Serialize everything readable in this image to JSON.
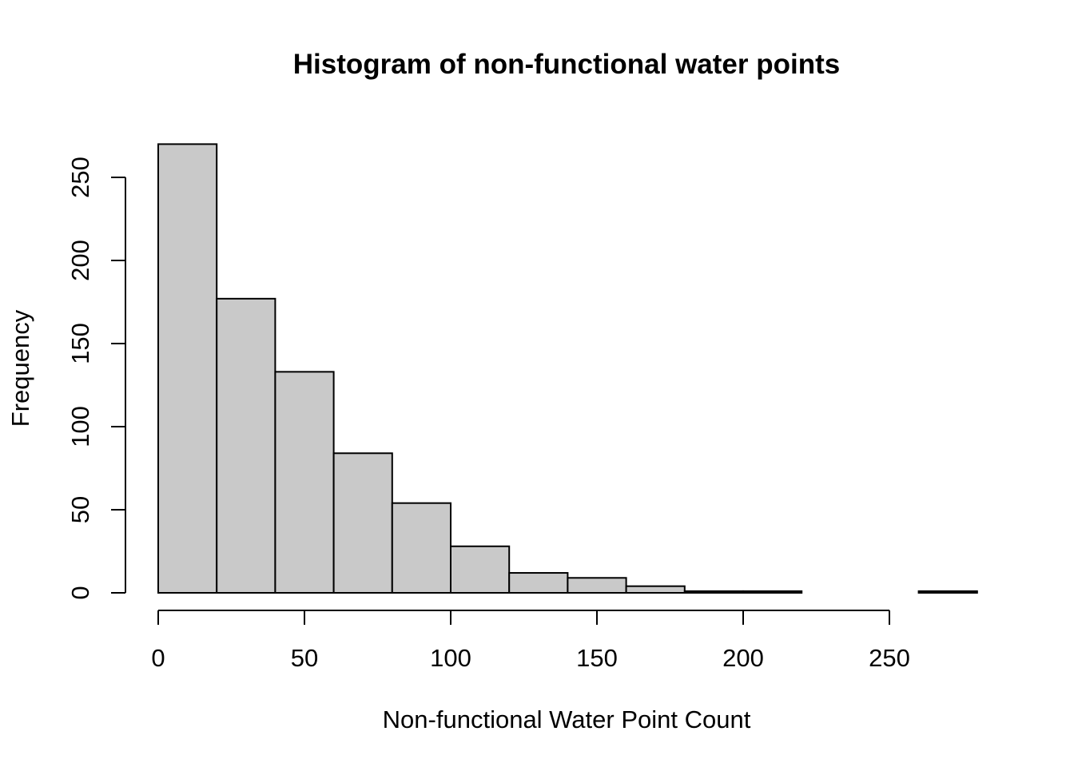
{
  "chart_data": {
    "type": "bar",
    "title": "Histogram of non-functional water points",
    "xlabel": "Non-functional Water Point Count",
    "ylabel": "Frequency",
    "bins": [
      {
        "start": 0,
        "end": 20,
        "count": 270
      },
      {
        "start": 20,
        "end": 40,
        "count": 177
      },
      {
        "start": 40,
        "end": 60,
        "count": 133
      },
      {
        "start": 60,
        "end": 80,
        "count": 84
      },
      {
        "start": 80,
        "end": 100,
        "count": 54
      },
      {
        "start": 100,
        "end": 120,
        "count": 28
      },
      {
        "start": 120,
        "end": 140,
        "count": 12
      },
      {
        "start": 140,
        "end": 160,
        "count": 9
      },
      {
        "start": 160,
        "end": 180,
        "count": 4
      },
      {
        "start": 180,
        "end": 200,
        "count": 1
      },
      {
        "start": 200,
        "end": 220,
        "count": 1
      },
      {
        "start": 220,
        "end": 240,
        "count": 0
      },
      {
        "start": 240,
        "end": 260,
        "count": 0
      },
      {
        "start": 260,
        "end": 280,
        "count": 1
      }
    ],
    "xlim": [
      0,
      280
    ],
    "ylim": [
      0,
      270
    ],
    "x_ticks": [
      0,
      50,
      100,
      150,
      200,
      250
    ],
    "x_tick_labels": [
      "0",
      "50",
      "100",
      "150",
      "200",
      "250"
    ],
    "y_ticks": [
      0,
      50,
      100,
      150,
      200,
      250
    ],
    "y_tick_labels": [
      "0",
      "50",
      "100",
      "150",
      "200",
      "250"
    ],
    "bar_color": "#c9c9c9",
    "edge_color": "#000000",
    "grid": false,
    "legend": "none"
  }
}
